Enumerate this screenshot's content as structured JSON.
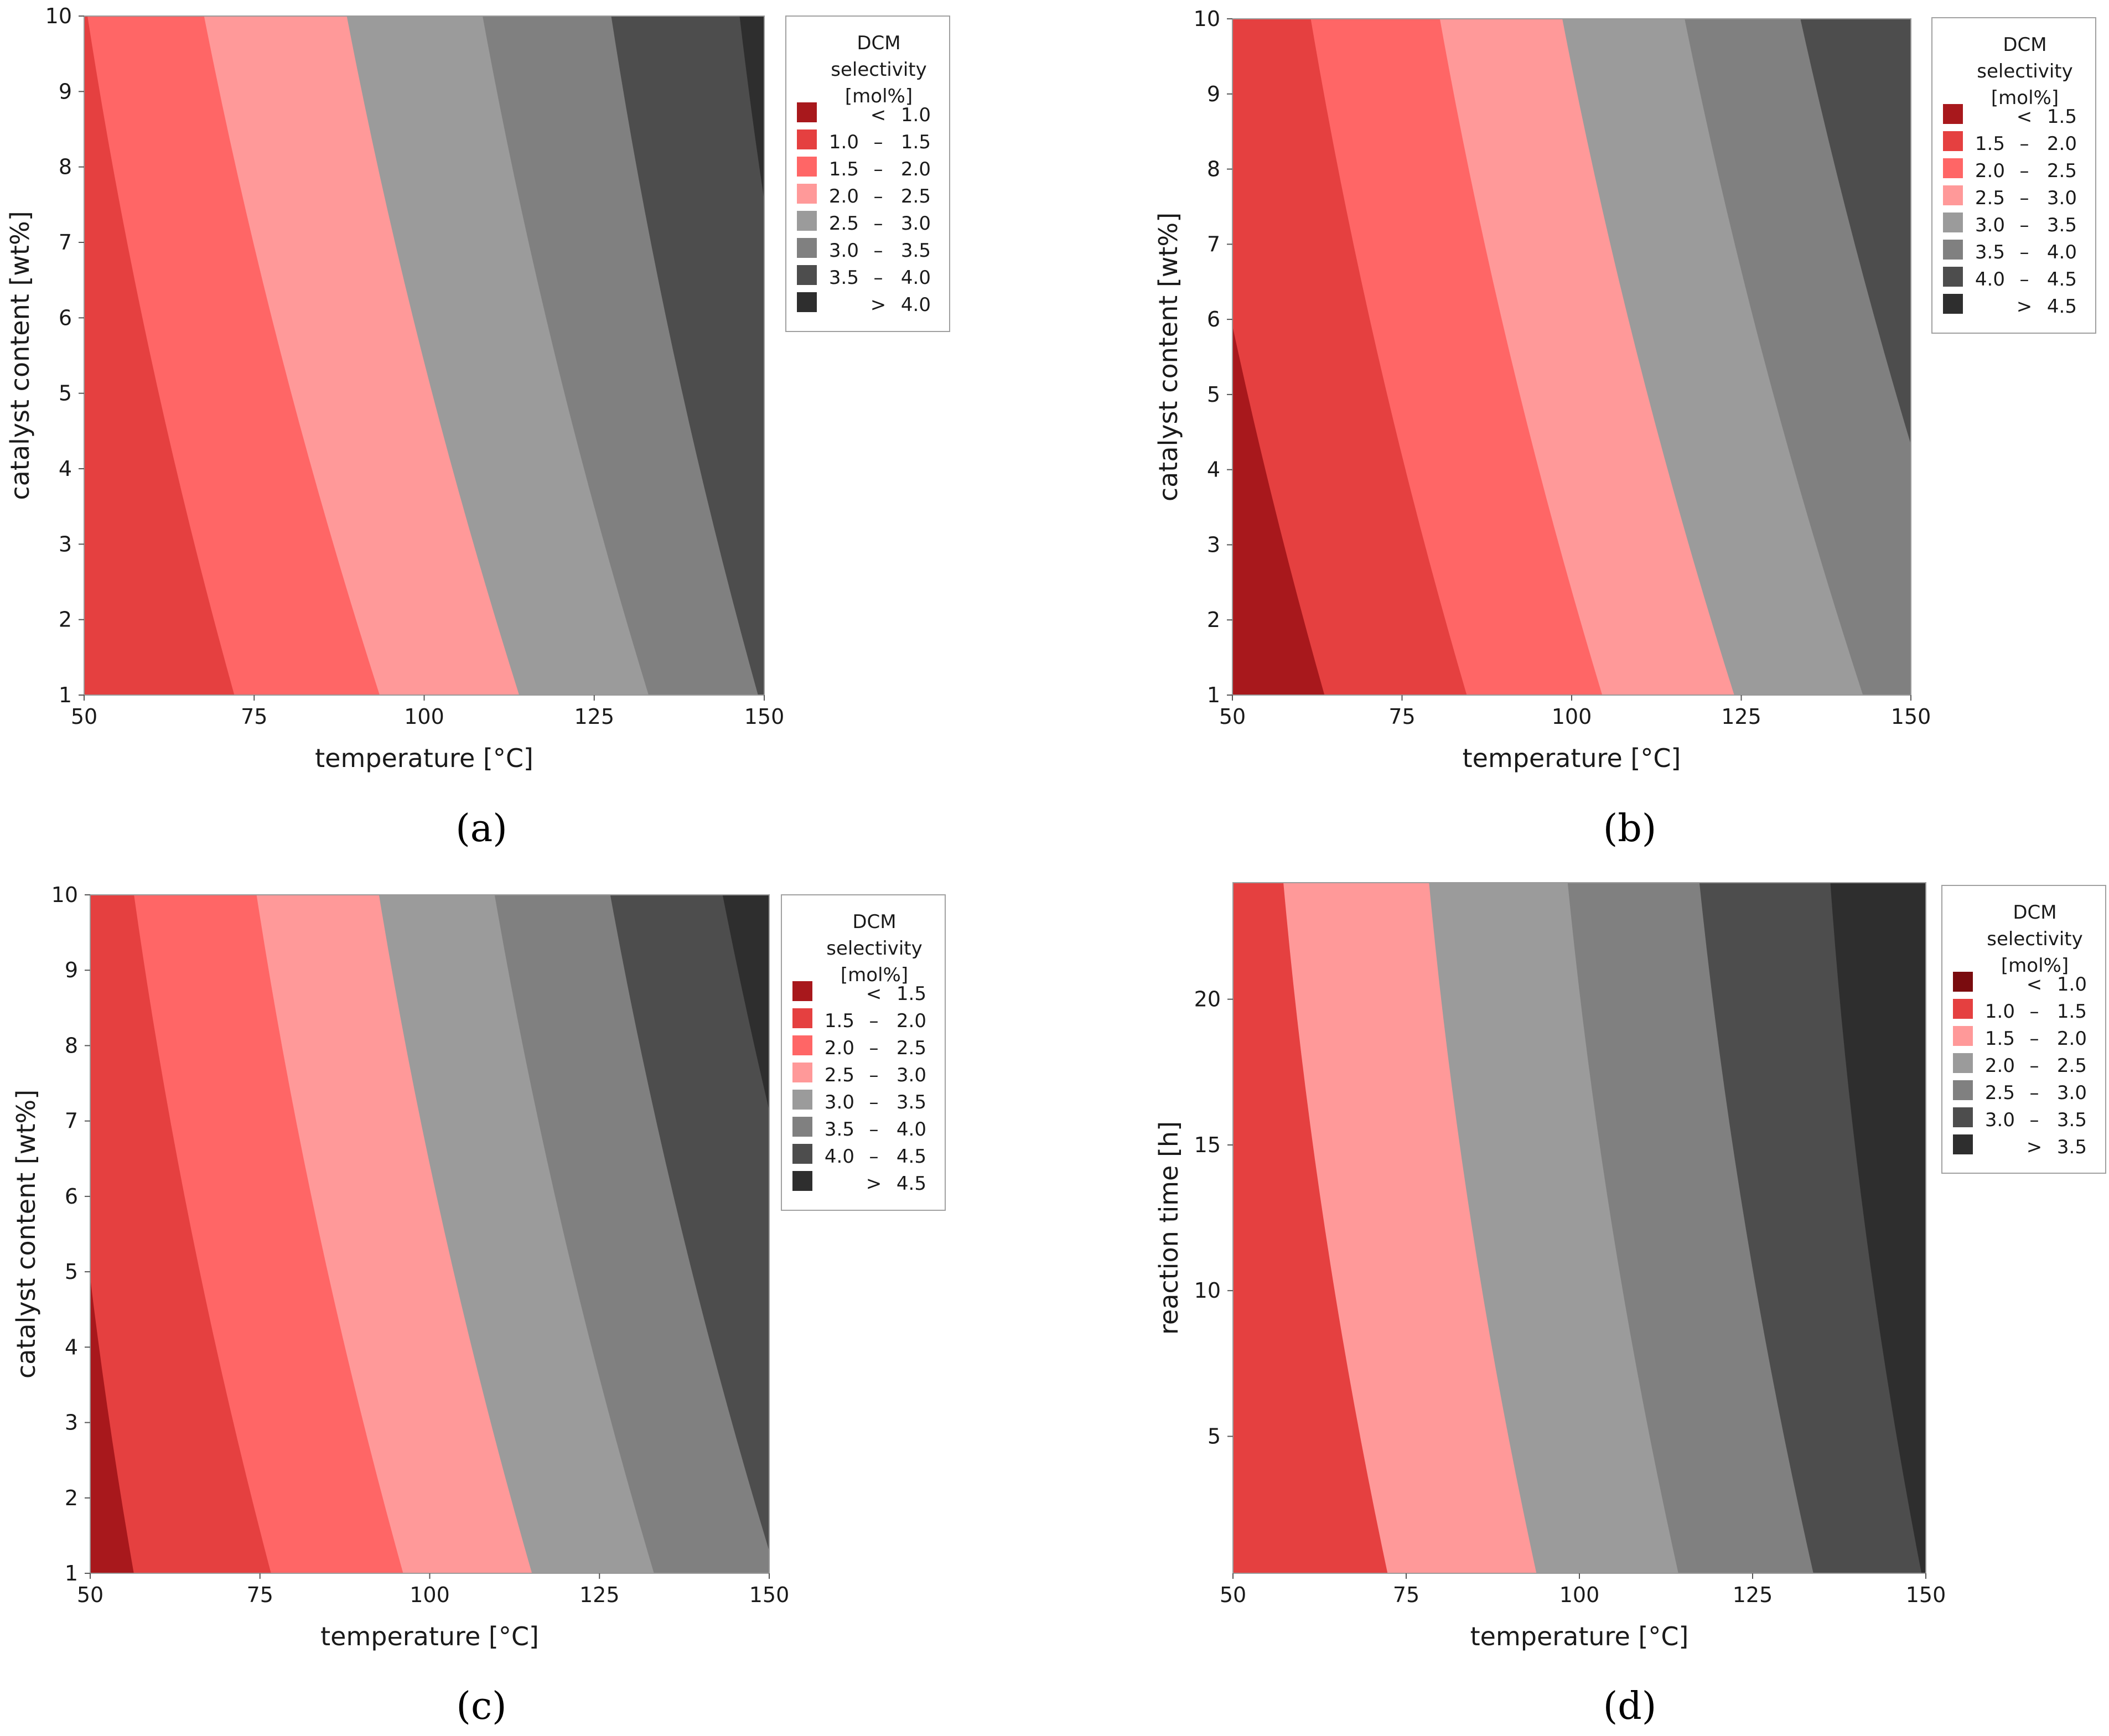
{
  "figure": {
    "background": "#ffffff"
  },
  "chart_data": [
    {
      "type": "contour",
      "label": "(a)",
      "xlabel": "temperature [°C]",
      "ylabel": "catalyst content [wt%]",
      "xlim": [
        50,
        150
      ],
      "ylim": [
        1,
        10
      ],
      "xticks": [
        50,
        75,
        100,
        125,
        150
      ],
      "yticks": [
        1,
        2,
        3,
        4,
        5,
        6,
        7,
        8,
        9,
        10
      ],
      "legend_title": [
        "DCM",
        "selectivity",
        "[mol%]"
      ],
      "legend_entries": [
        {
          "op": "<",
          "lo": "",
          "hi": "1.0",
          "color": "#a8181c"
        },
        {
          "op": "–",
          "lo": "1.0",
          "hi": "1.5",
          "color": "#e54040"
        },
        {
          "op": "–",
          "lo": "1.5",
          "hi": "2.0",
          "color": "#ff6666"
        },
        {
          "op": "–",
          "lo": "2.0",
          "hi": "2.5",
          "color": "#ff9999"
        },
        {
          "op": "–",
          "lo": "2.5",
          "hi": "3.0",
          "color": "#9b9b9b"
        },
        {
          "op": "–",
          "lo": "3.0",
          "hi": "3.5",
          "color": "#808080"
        },
        {
          "op": "–",
          "lo": "3.5",
          "hi": "4.0",
          "color": "#4d4d4d"
        },
        {
          "op": ">",
          "lo": "",
          "hi": "4.0",
          "color": "#2e2e2e"
        }
      ],
      "boundaries": [
        {
          "bottom": 50,
          "top": 50,
          "fill": 1
        },
        {
          "bottom": 73,
          "top": 50,
          "fill": 2
        },
        {
          "bottom": 94.5,
          "top": 67,
          "fill": 3
        },
        {
          "bottom": 115,
          "top": 88,
          "fill": 4
        },
        {
          "bottom": 134,
          "top": 108,
          "fill": 5
        },
        {
          "bottom": 150,
          "top": 127,
          "fill": 6
        },
        {
          "bottom": 165,
          "top": 146,
          "fill": 7
        }
      ],
      "first_fill": 1
    },
    {
      "type": "contour",
      "label": "(b)",
      "xlabel": "temperature  [°C]",
      "ylabel": "catalyst content [wt%]",
      "xlim": [
        50,
        150
      ],
      "ylim": [
        1,
        10
      ],
      "xticks": [
        50,
        75,
        100,
        125,
        150
      ],
      "yticks": [
        1,
        2,
        3,
        4,
        5,
        6,
        7,
        8,
        9,
        10
      ],
      "legend_title": [
        "DCM",
        "selectivity",
        "[mol%]"
      ],
      "legend_entries": [
        {
          "op": "<",
          "lo": "",
          "hi": "1.5",
          "color": "#a8181c"
        },
        {
          "op": "–",
          "lo": "1.5",
          "hi": "2.0",
          "color": "#e54040"
        },
        {
          "op": "–",
          "lo": "2.0",
          "hi": "2.5",
          "color": "#ff6666"
        },
        {
          "op": "–",
          "lo": "2.5",
          "hi": "3.0",
          "color": "#ff9999"
        },
        {
          "op": "–",
          "lo": "3.0",
          "hi": "3.5",
          "color": "#9b9b9b"
        },
        {
          "op": "–",
          "lo": "3.5",
          "hi": "4.0",
          "color": "#808080"
        },
        {
          "op": "–",
          "lo": "4.0",
          "hi": "4.5",
          "color": "#4d4d4d"
        },
        {
          "op": ">",
          "lo": "",
          "hi": "4.5",
          "color": "#2e2e2e"
        }
      ],
      "boundaries": [
        {
          "bottom": 64.5,
          "top": 41,
          "fill": 1
        },
        {
          "bottom": 85.5,
          "top": 61,
          "fill": 2
        },
        {
          "bottom": 105.5,
          "top": 80,
          "fill": 3
        },
        {
          "bottom": 125,
          "top": 98,
          "fill": 4
        },
        {
          "bottom": 144,
          "top": 116,
          "fill": 5
        },
        {
          "bottom": 163,
          "top": 133,
          "fill": 6
        }
      ],
      "first_fill": 0
    },
    {
      "type": "contour",
      "label": "(c)",
      "xlabel": "temperature  [°C]",
      "ylabel": "catalyst content [wt%]",
      "xlim": [
        50,
        150
      ],
      "ylim": [
        1,
        10
      ],
      "xticks": [
        50,
        75,
        100,
        125,
        150
      ],
      "yticks": [
        1,
        2,
        3,
        4,
        5,
        6,
        7,
        8,
        9,
        10
      ],
      "legend_title": [
        "DCM",
        "selectivity",
        "[mol%]"
      ],
      "legend_entries": [
        {
          "op": "<",
          "lo": "",
          "hi": "1.5",
          "color": "#a8181c"
        },
        {
          "op": "–",
          "lo": "1.5",
          "hi": "2.0",
          "color": "#e54040"
        },
        {
          "op": "–",
          "lo": "2.0",
          "hi": "2.5",
          "color": "#ff6666"
        },
        {
          "op": "–",
          "lo": "2.5",
          "hi": "3.0",
          "color": "#ff9999"
        },
        {
          "op": "–",
          "lo": "3.0",
          "hi": "3.5",
          "color": "#9b9b9b"
        },
        {
          "op": "–",
          "lo": "3.5",
          "hi": "4.0",
          "color": "#808080"
        },
        {
          "op": "–",
          "lo": "4.0",
          "hi": "4.5",
          "color": "#4d4d4d"
        },
        {
          "op": ">",
          "lo": "",
          "hi": "4.5",
          "color": "#2e2e2e"
        }
      ],
      "boundaries": [
        {
          "bottom": 57,
          "top": 45,
          "fill": 1
        },
        {
          "bottom": 77.5,
          "top": 56,
          "fill": 2
        },
        {
          "bottom": 97,
          "top": 74,
          "fill": 3
        },
        {
          "bottom": 116,
          "top": 92,
          "fill": 4
        },
        {
          "bottom": 134,
          "top": 109,
          "fill": 5
        },
        {
          "bottom": 152,
          "top": 126,
          "fill": 6
        },
        {
          "bottom": 170,
          "top": 142.5,
          "fill": 7
        }
      ],
      "first_fill": 0
    },
    {
      "type": "contour",
      "label": "(d)",
      "xlabel": "temperature  [°C]",
      "ylabel": "reaction time [h]",
      "xlim": [
        50,
        150
      ],
      "ylim": [
        0.3,
        24
      ],
      "xticks": [
        50,
        75,
        100,
        125,
        150
      ],
      "yticks": [
        5,
        10,
        15,
        20
      ],
      "legend_title": [
        "DCM",
        "selectivity",
        "[mol%]"
      ],
      "legend_entries": [
        {
          "op": "<",
          "lo": "",
          "hi": "1.0",
          "color": "#7a0c0f"
        },
        {
          "op": "–",
          "lo": "1.0",
          "hi": "1.5",
          "color": "#e54040"
        },
        {
          "op": "–",
          "lo": "1.5",
          "hi": "2.0",
          "color": "#ff9999"
        },
        {
          "op": "–",
          "lo": "2.0",
          "hi": "2.5",
          "color": "#9b9b9b"
        },
        {
          "op": "–",
          "lo": "2.5",
          "hi": "3.0",
          "color": "#808080"
        },
        {
          "op": "–",
          "lo": "3.0",
          "hi": "3.5",
          "color": "#4d4d4d"
        },
        {
          "op": ">",
          "lo": "",
          "hi": "3.5",
          "color": "#2e2e2e"
        }
      ],
      "boundaries": [
        {
          "bottom": 50,
          "top": 49,
          "fill": 1
        },
        {
          "bottom": 73,
          "top": 57,
          "fill": 2
        },
        {
          "bottom": 94.5,
          "top": 78,
          "fill": 3
        },
        {
          "bottom": 115,
          "top": 98,
          "fill": 4
        },
        {
          "bottom": 134.5,
          "top": 117,
          "fill": 5
        },
        {
          "bottom": 150,
          "top": 136,
          "fill": 6
        }
      ],
      "first_fill": 1
    }
  ]
}
